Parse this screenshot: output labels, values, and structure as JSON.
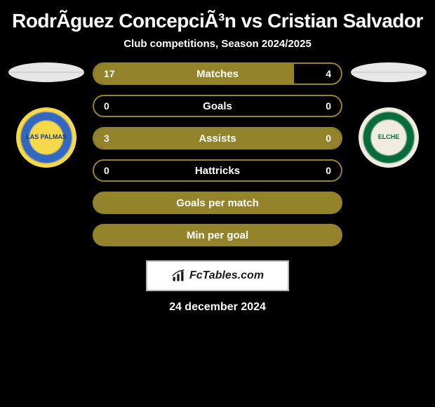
{
  "title": "RodrÃ­guez ConcepciÃ³n vs Cristian Salvador",
  "subtitle": "Club competitions, Season 2024/2025",
  "pill_color": "#93842c",
  "pill_border_color": "#93842c",
  "text_on_pill": "#ffffff",
  "left_player": {
    "club_short": "LAS PALMAS",
    "flag_class": "flag-left",
    "badge_class": "badge-left"
  },
  "right_player": {
    "club_short": "ELCHE",
    "flag_class": "flag-right",
    "badge_class": "badge-right"
  },
  "stats": [
    {
      "label": "Matches",
      "left_value": "17",
      "right_value": "4",
      "left_pct": 81,
      "has_values": true
    },
    {
      "label": "Goals",
      "left_value": "0",
      "right_value": "0",
      "left_pct": 0,
      "has_values": true
    },
    {
      "label": "Assists",
      "left_value": "3",
      "right_value": "0",
      "left_pct": 100,
      "has_values": true
    },
    {
      "label": "Hattricks",
      "left_value": "0",
      "right_value": "0",
      "left_pct": 0,
      "has_values": true
    },
    {
      "label": "Goals per match",
      "has_values": false
    },
    {
      "label": "Min per goal",
      "has_values": false
    }
  ],
  "attribution": {
    "text": "FcTables.com"
  },
  "date": "24 december 2024"
}
